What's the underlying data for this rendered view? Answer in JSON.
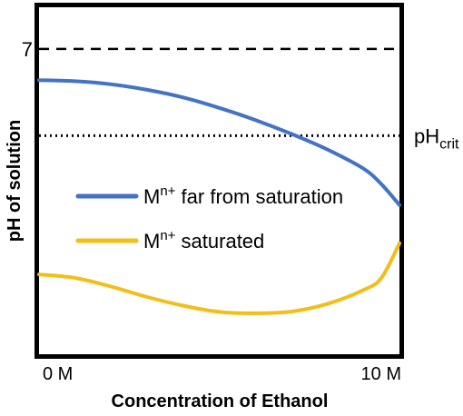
{
  "chart_data": {
    "type": "line",
    "xlabel": "Concentration of Ethanol",
    "ylabel": "pH of solution",
    "x_tick_labels": [
      "0 M",
      "10 M"
    ],
    "xlim": [
      0,
      10
    ],
    "y_axis_values_unlabeled": true,
    "grid": false,
    "legend_position": "center-left",
    "reference_lines": [
      {
        "label": "7",
        "label_side": "left",
        "style": "dashed",
        "value": 0.88
      },
      {
        "label_base": "pH",
        "label_sub": "crit",
        "label_side": "right",
        "style": "dotted",
        "value": 0.63
      }
    ],
    "series": [
      {
        "name_base": "M",
        "name_sup": "n+",
        "name_rest": " far from saturation",
        "color": "#4472C4",
        "points": [
          [
            0,
            0.79
          ],
          [
            1,
            0.787
          ],
          [
            2,
            0.778
          ],
          [
            3,
            0.762
          ],
          [
            4,
            0.74
          ],
          [
            5,
            0.71
          ],
          [
            6,
            0.675
          ],
          [
            7,
            0.635
          ],
          [
            8,
            0.59
          ],
          [
            9,
            0.535
          ],
          [
            9.5,
            0.49
          ],
          [
            10,
            0.43
          ]
        ]
      },
      {
        "name_base": "M",
        "name_sup": "n+",
        "name_rest": " saturated",
        "color": "#F2BE1A",
        "points": [
          [
            0,
            0.23
          ],
          [
            1,
            0.22
          ],
          [
            2,
            0.195
          ],
          [
            3,
            0.165
          ],
          [
            4,
            0.14
          ],
          [
            5,
            0.122
          ],
          [
            6,
            0.118
          ],
          [
            7,
            0.123
          ],
          [
            8,
            0.145
          ],
          [
            9,
            0.185
          ],
          [
            9.5,
            0.22
          ],
          [
            10,
            0.32
          ]
        ]
      }
    ]
  }
}
